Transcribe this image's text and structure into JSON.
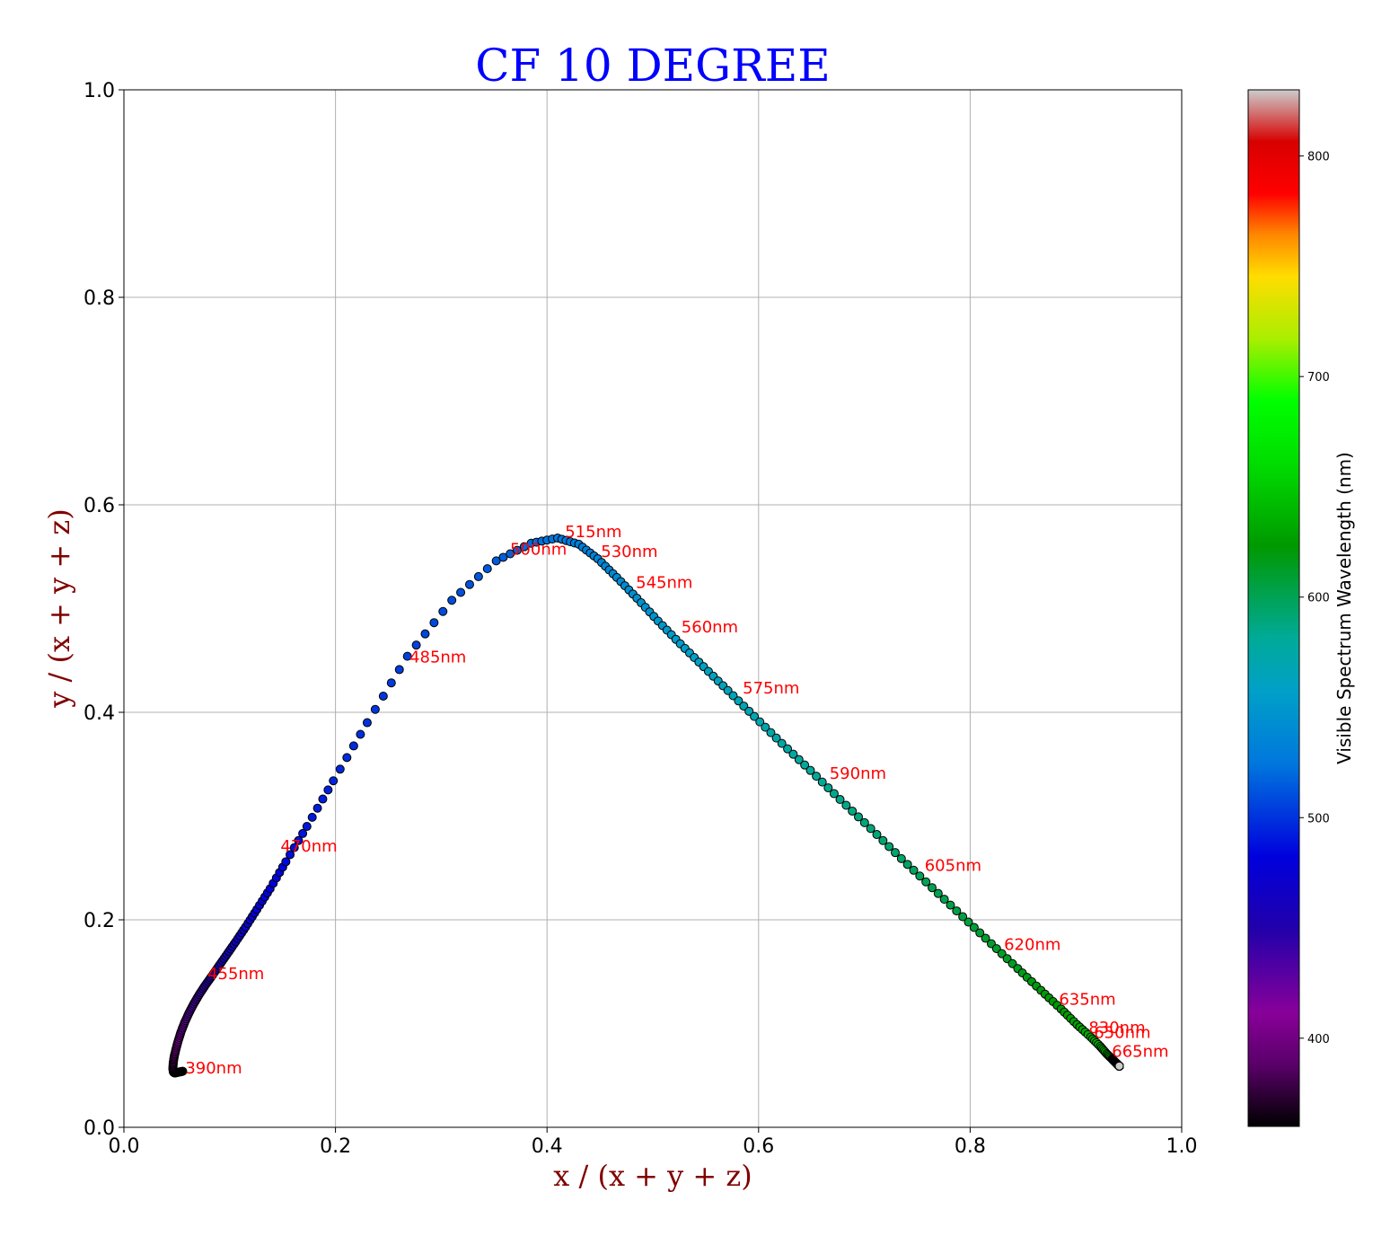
{
  "chart_data": {
    "type": "scatter",
    "title": "CF 10 DEGREE",
    "xlabel": "x / (x + y + z)",
    "ylabel": "y / (x + y + z)",
    "xlim": [
      0.0,
      1.0
    ],
    "ylim": [
      0.0,
      1.0
    ],
    "xticks": [
      "0.0",
      "0.2",
      "0.4",
      "0.6",
      "0.8",
      "1.0"
    ],
    "yticks": [
      "0.0",
      "0.2",
      "0.4",
      "0.6",
      "0.8",
      "1.0"
    ],
    "grid": true,
    "colorbar": {
      "label": "Visible Spectrum Wavelength (nm)",
      "range": [
        360,
        830
      ],
      "colormap": "nipy_spectral",
      "ticks": [
        "400",
        "500",
        "600",
        "700",
        "800"
      ]
    },
    "annotations": [
      {
        "text": "390nm",
        "x": 0.058,
        "y": 0.052
      },
      {
        "text": "455nm",
        "x": 0.079,
        "y": 0.143
      },
      {
        "text": "470nm",
        "x": 0.148,
        "y": 0.266
      },
      {
        "text": "485nm",
        "x": 0.27,
        "y": 0.448
      },
      {
        "text": "500nm",
        "x": 0.365,
        "y": 0.552
      },
      {
        "text": "515nm",
        "x": 0.417,
        "y": 0.569
      },
      {
        "text": "530nm",
        "x": 0.451,
        "y": 0.55
      },
      {
        "text": "545nm",
        "x": 0.484,
        "y": 0.52
      },
      {
        "text": "560nm",
        "x": 0.527,
        "y": 0.477
      },
      {
        "text": "575nm",
        "x": 0.585,
        "y": 0.418
      },
      {
        "text": "590nm",
        "x": 0.667,
        "y": 0.336
      },
      {
        "text": "605nm",
        "x": 0.757,
        "y": 0.247
      },
      {
        "text": "620nm",
        "x": 0.832,
        "y": 0.171
      },
      {
        "text": "635nm",
        "x": 0.884,
        "y": 0.118
      },
      {
        "text": "830nm",
        "x": 0.912,
        "y": 0.091
      },
      {
        "text": "650nm",
        "x": 0.917,
        "y": 0.086
      },
      {
        "text": "665nm",
        "x": 0.934,
        "y": 0.068
      }
    ],
    "series": [
      {
        "points": [
          {
            "wl": 360,
            "x": 0.0556,
            "y": 0.054
          },
          {
            "wl": 365,
            "x": 0.0531,
            "y": 0.0535
          },
          {
            "wl": 370,
            "x": 0.0508,
            "y": 0.053
          },
          {
            "wl": 375,
            "x": 0.0491,
            "y": 0.0526
          },
          {
            "wl": 380,
            "x": 0.0479,
            "y": 0.0525
          },
          {
            "wl": 385,
            "x": 0.0471,
            "y": 0.0529
          },
          {
            "wl": 390,
            "x": 0.0466,
            "y": 0.054
          },
          {
            "wl": 395,
            "x": 0.0463,
            "y": 0.057
          },
          {
            "wl": 400,
            "x": 0.0466,
            "y": 0.062
          },
          {
            "wl": 405,
            "x": 0.0475,
            "y": 0.068
          },
          {
            "wl": 410,
            "x": 0.0491,
            "y": 0.075
          },
          {
            "wl": 415,
            "x": 0.0512,
            "y": 0.083
          },
          {
            "wl": 420,
            "x": 0.054,
            "y": 0.092
          },
          {
            "wl": 425,
            "x": 0.0574,
            "y": 0.101
          },
          {
            "wl": 430,
            "x": 0.0614,
            "y": 0.11
          },
          {
            "wl": 435,
            "x": 0.066,
            "y": 0.119
          },
          {
            "wl": 440,
            "x": 0.0712,
            "y": 0.128
          },
          {
            "wl": 445,
            "x": 0.077,
            "y": 0.137
          },
          {
            "wl": 450,
            "x": 0.0833,
            "y": 0.146
          },
          {
            "wl": 455,
            "x": 0.0901,
            "y": 0.156
          },
          {
            "wl": 460,
            "x": 0.0976,
            "y": 0.167
          },
          {
            "wl": 465,
            "x": 0.1058,
            "y": 0.179
          },
          {
            "wl": 470,
            "x": 0.115,
            "y": 0.193
          },
          {
            "wl": 475,
            "x": 0.1257,
            "y": 0.21
          },
          {
            "wl": 480,
            "x": 0.1382,
            "y": 0.23
          },
          {
            "wl": 485,
            "x": 0.1531,
            "y": 0.256
          },
          {
            "wl": 490,
            "x": 0.173,
            "y": 0.29
          },
          {
            "wl": 495,
            "x": 0.198,
            "y": 0.334
          },
          {
            "wl": 500,
            "x": 0.23,
            "y": 0.39
          },
          {
            "wl": 505,
            "x": 0.268,
            "y": 0.454
          },
          {
            "wl": 510,
            "x": 0.31,
            "y": 0.508
          },
          {
            "wl": 515,
            "x": 0.352,
            "y": 0.546
          },
          {
            "wl": 520,
            "x": 0.385,
            "y": 0.563
          },
          {
            "wl": 525,
            "x": 0.41,
            "y": 0.568
          },
          {
            "wl": 530,
            "x": 0.43,
            "y": 0.562
          },
          {
            "wl": 535,
            "x": 0.448,
            "y": 0.548
          },
          {
            "wl": 540,
            "x": 0.466,
            "y": 0.53
          },
          {
            "wl": 545,
            "x": 0.485,
            "y": 0.51
          },
          {
            "wl": 550,
            "x": 0.505,
            "y": 0.488
          },
          {
            "wl": 555,
            "x": 0.526,
            "y": 0.466
          },
          {
            "wl": 560,
            "x": 0.548,
            "y": 0.444
          },
          {
            "wl": 565,
            "x": 0.571,
            "y": 0.421
          },
          {
            "wl": 570,
            "x": 0.596,
            "y": 0.396
          },
          {
            "wl": 575,
            "x": 0.622,
            "y": 0.37
          },
          {
            "wl": 580,
            "x": 0.649,
            "y": 0.344
          },
          {
            "wl": 585,
            "x": 0.677,
            "y": 0.316
          },
          {
            "wl": 590,
            "x": 0.706,
            "y": 0.288
          },
          {
            "wl": 595,
            "x": 0.735,
            "y": 0.259
          },
          {
            "wl": 600,
            "x": 0.764,
            "y": 0.231
          },
          {
            "wl": 605,
            "x": 0.793,
            "y": 0.203
          },
          {
            "wl": 610,
            "x": 0.82,
            "y": 0.177
          },
          {
            "wl": 615,
            "x": 0.845,
            "y": 0.153
          },
          {
            "wl": 620,
            "x": 0.867,
            "y": 0.132
          },
          {
            "wl": 625,
            "x": 0.886,
            "y": 0.114
          },
          {
            "wl": 630,
            "x": 0.901,
            "y": 0.099
          },
          {
            "wl": 635,
            "x": 0.914,
            "y": 0.087
          },
          {
            "wl": 640,
            "x": 0.923,
            "y": 0.078
          },
          {
            "wl": 645,
            "x": 0.929,
            "y": 0.071
          },
          {
            "wl": 650,
            "x": 0.934,
            "y": 0.066
          },
          {
            "wl": 660,
            "x": 0.938,
            "y": 0.062
          },
          {
            "wl": 680,
            "x": 0.94,
            "y": 0.06
          },
          {
            "wl": 700,
            "x": 0.941,
            "y": 0.059
          },
          {
            "wl": 830,
            "x": 0.941,
            "y": 0.059
          }
        ]
      }
    ]
  }
}
